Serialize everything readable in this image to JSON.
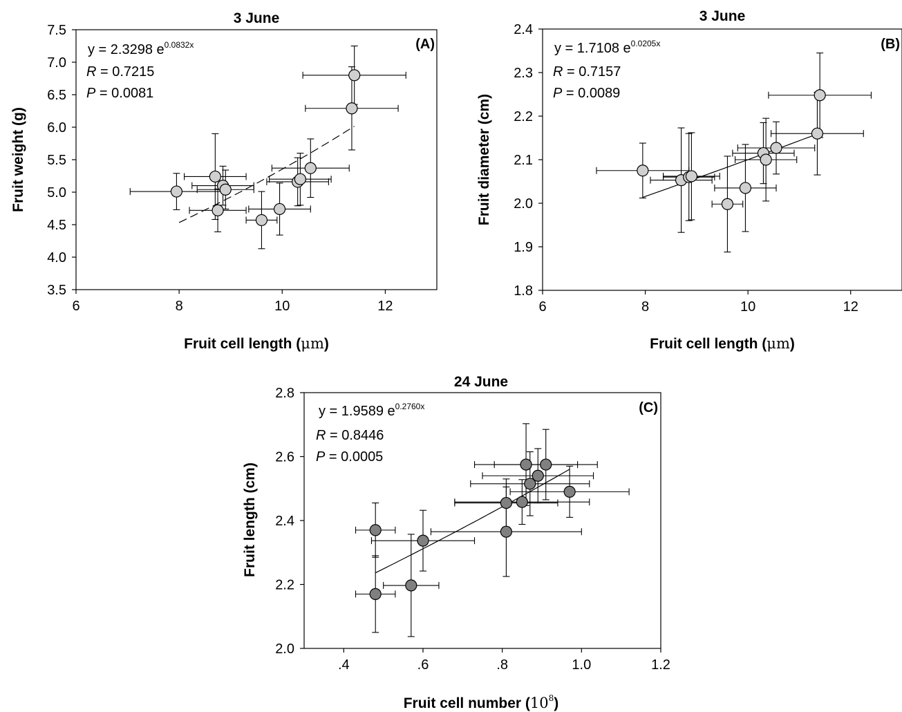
{
  "chart_data": [
    {
      "type": "scatter",
      "panel": "(A)",
      "title": "3 June",
      "xlabel": "Fruit cell length (",
      "xunit": "μm",
      "ylabel": "Fruit weight (g)",
      "xlim": [
        6,
        13
      ],
      "ylim": [
        3.5,
        7.5
      ],
      "xticks": [
        "6",
        "8",
        "10",
        "12"
      ],
      "yticks": [
        "3.5",
        "4.0",
        "4.5",
        "5.0",
        "5.5",
        "6.0",
        "6.5",
        "7.0",
        "7.5"
      ],
      "equation": {
        "prefix": "y = 2.3298 e",
        "exponent": "0.0832x"
      },
      "r_label": "R",
      "r_value": " = 0.7215",
      "p_label": "P",
      "p_value": " = 0.0081",
      "fit": {
        "a": 2.3298,
        "b": 0.0832,
        "x_range": [
          8.0,
          11.4
        ],
        "style": "dashed"
      },
      "marker_color": "#d0d0d0",
      "points": [
        {
          "x": 7.95,
          "y": 5.01,
          "xerr": 0.9,
          "yerr": 0.28
        },
        {
          "x": 8.7,
          "y": 5.24,
          "xerr": 0.6,
          "yerr": 0.66
        },
        {
          "x": 8.75,
          "y": 4.72,
          "xerr": 0.55,
          "yerr": 0.33
        },
        {
          "x": 8.85,
          "y": 5.1,
          "xerr": 0.6,
          "yerr": 0.3
        },
        {
          "x": 8.9,
          "y": 5.04,
          "xerr": 0.55,
          "yerr": 0.3
        },
        {
          "x": 9.6,
          "y": 4.57,
          "xerr": 0.3,
          "yerr": 0.44
        },
        {
          "x": 9.95,
          "y": 4.74,
          "xerr": 0.6,
          "yerr": 0.4
        },
        {
          "x": 10.3,
          "y": 5.16,
          "xerr": 0.6,
          "yerr": 0.37
        },
        {
          "x": 10.35,
          "y": 5.2,
          "xerr": 0.6,
          "yerr": 0.4
        },
        {
          "x": 10.55,
          "y": 5.37,
          "xerr": 0.75,
          "yerr": 0.45
        },
        {
          "x": 11.35,
          "y": 6.29,
          "xerr": 0.9,
          "yerr": 0.64
        },
        {
          "x": 11.4,
          "y": 6.8,
          "xerr": 1.0,
          "yerr": 0.45
        }
      ]
    },
    {
      "type": "scatter",
      "panel": "(B)",
      "title": "3 June",
      "xlabel": "Fruit cell length (",
      "xunit": "μm",
      "ylabel": "Fruit diameter (cm)",
      "xlim": [
        6,
        13
      ],
      "ylim": [
        1.8,
        2.4
      ],
      "xticks": [
        "6",
        "8",
        "10",
        "12"
      ],
      "yticks": [
        "1.8",
        "1.9",
        "2.0",
        "2.1",
        "2.2",
        "2.3",
        "2.4"
      ],
      "equation": {
        "prefix": "y = 1.7108 e",
        "exponent": "0.0205x"
      },
      "r_label": "R",
      "r_value": " = 0.7157",
      "p_label": "P",
      "p_value": " = 0.0089",
      "fit": {
        "a": 1.7108,
        "b": 0.0205,
        "x_range": [
          7.95,
          11.4
        ],
        "style": "solid"
      },
      "marker_color": "#d0d0d0",
      "points": [
        {
          "x": 7.95,
          "y": 2.075,
          "xerr": 0.9,
          "yerr": 0.063
        },
        {
          "x": 8.7,
          "y": 2.053,
          "xerr": 0.6,
          "yerr": 0.12
        },
        {
          "x": 8.85,
          "y": 2.06,
          "xerr": 0.5,
          "yerr": 0.1
        },
        {
          "x": 8.9,
          "y": 2.062,
          "xerr": 0.55,
          "yerr": 0.1
        },
        {
          "x": 9.6,
          "y": 1.998,
          "xerr": 0.3,
          "yerr": 0.11
        },
        {
          "x": 9.95,
          "y": 2.035,
          "xerr": 0.6,
          "yerr": 0.1
        },
        {
          "x": 10.3,
          "y": 2.115,
          "xerr": 0.6,
          "yerr": 0.07
        },
        {
          "x": 10.35,
          "y": 2.1,
          "xerr": 0.6,
          "yerr": 0.095
        },
        {
          "x": 10.55,
          "y": 2.127,
          "xerr": 0.75,
          "yerr": 0.06
        },
        {
          "x": 11.35,
          "y": 2.16,
          "xerr": 0.9,
          "yerr": 0.095
        },
        {
          "x": 11.4,
          "y": 2.248,
          "xerr": 1.0,
          "yerr": 0.097
        }
      ]
    },
    {
      "type": "scatter",
      "panel": "(C)",
      "title": "24 June",
      "xlabel": "Fruit cell number (",
      "xunit": "10",
      "xunit_exp": "8",
      "ylabel": "Fruit length (cm)",
      "xlim": [
        0.3,
        1.2
      ],
      "ylim": [
        2.0,
        2.8
      ],
      "xticks": [
        ".4",
        ".6",
        ".8",
        "1.0",
        "1.2"
      ],
      "yticks": [
        "2.0",
        "2.2",
        "2.4",
        "2.6",
        "2.8"
      ],
      "equation": {
        "prefix": "y = 1.9589 e",
        "exponent": "0.2760x"
      },
      "r_label": "R",
      "r_value": " = 0.8446",
      "p_label": "P",
      "p_value": " = 0.0005",
      "fit": {
        "a": 1.9589,
        "b": 0.276,
        "x_range": [
          0.48,
          0.97
        ],
        "style": "solid"
      },
      "marker_color": "#808080",
      "points": [
        {
          "x": 0.48,
          "y": 2.37,
          "xerr": 0.05,
          "yerr": 0.085
        },
        {
          "x": 0.48,
          "y": 2.17,
          "xerr": 0.05,
          "yerr": 0.12
        },
        {
          "x": 0.57,
          "y": 2.197,
          "xerr": 0.07,
          "yerr": 0.16
        },
        {
          "x": 0.6,
          "y": 2.337,
          "xerr": 0.13,
          "yerr": 0.095
        },
        {
          "x": 0.81,
          "y": 2.365,
          "xerr": 0.19,
          "yerr": 0.14
        },
        {
          "x": 0.81,
          "y": 2.455,
          "xerr": 0.13,
          "yerr": 0.075
        },
        {
          "x": 0.85,
          "y": 2.458,
          "xerr": 0.17,
          "yerr": 0.07
        },
        {
          "x": 0.86,
          "y": 2.575,
          "xerr": 0.13,
          "yerr": 0.128
        },
        {
          "x": 0.87,
          "y": 2.515,
          "xerr": 0.15,
          "yerr": 0.1
        },
        {
          "x": 0.89,
          "y": 2.54,
          "xerr": 0.14,
          "yerr": 0.085
        },
        {
          "x": 0.91,
          "y": 2.575,
          "xerr": 0.13,
          "yerr": 0.11
        },
        {
          "x": 0.97,
          "y": 2.49,
          "xerr": 0.15,
          "yerr": 0.08
        }
      ]
    }
  ]
}
